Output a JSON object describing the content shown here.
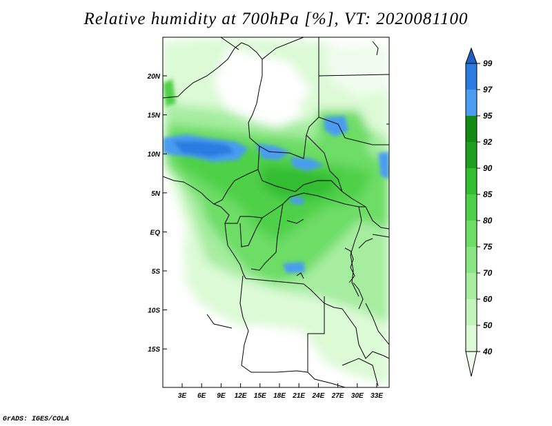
{
  "title": "Relative humidity at 700hPa [%], VT: 2020081100",
  "footer": "GrADS: IGES/COLA",
  "lat_ticks": [
    "20N",
    "15N",
    "10N",
    "5N",
    "EQ",
    "5S",
    "10S",
    "15S"
  ],
  "lon_ticks": [
    "3E",
    "6E",
    "9E",
    "12E",
    "15E",
    "18E",
    "21E",
    "24E",
    "27E",
    "30E",
    "33E"
  ],
  "colorbar": {
    "levels": [
      "40",
      "50",
      "60",
      "70",
      "75",
      "80",
      "85",
      "90",
      "92",
      "95",
      "97",
      "99"
    ],
    "colors": [
      "#f0fdee",
      "#dcfad6",
      "#c3f4bb",
      "#a6eda0",
      "#8ae583",
      "#6ddd66",
      "#4fd04a",
      "#33bd31",
      "#1f9f1e",
      "#138a14",
      "#4a9cf0",
      "#2c7be0",
      "#1e5fbf"
    ]
  },
  "chart_data": {
    "type": "heatmap",
    "title": "Relative humidity at 700hPa [%], VT: 2020081100",
    "variable": "Relative humidity at 700hPa",
    "units": "%",
    "valid_time": "2020081100",
    "lon_range": [
      0,
      35
    ],
    "lat_range": [
      -20,
      24
    ],
    "contour_levels": [
      40,
      50,
      60,
      70,
      75,
      80,
      85,
      90,
      92,
      95,
      97,
      99
    ],
    "xlabel": "",
    "ylabel": ""
  }
}
